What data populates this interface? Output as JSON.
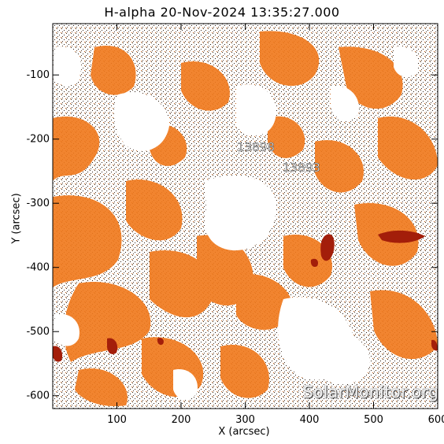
{
  "title": "H-alpha 20-Nov-2024 13:35:27.000",
  "watermark": "SolarMonitor.org",
  "regions": [
    {
      "number": "13898",
      "x": 325,
      "y": -190
    },
    {
      "number": "13893",
      "x": 395,
      "y": -225
    }
  ],
  "axes": {
    "xlabel": "X (arcsec)",
    "ylabel": "Y (arcsec)",
    "xlim": [
      0,
      600
    ],
    "ylim": [
      -620,
      -20
    ],
    "xticks": [
      "100",
      "200",
      "300",
      "400",
      "500",
      "600"
    ],
    "yticks": [
      "-100",
      "-200",
      "-300",
      "-400",
      "-500",
      "-600"
    ]
  },
  "colors": {
    "plage_orange": "#f07a1e",
    "dark_filament": "#a31e0a",
    "background": "#ffffff"
  }
}
